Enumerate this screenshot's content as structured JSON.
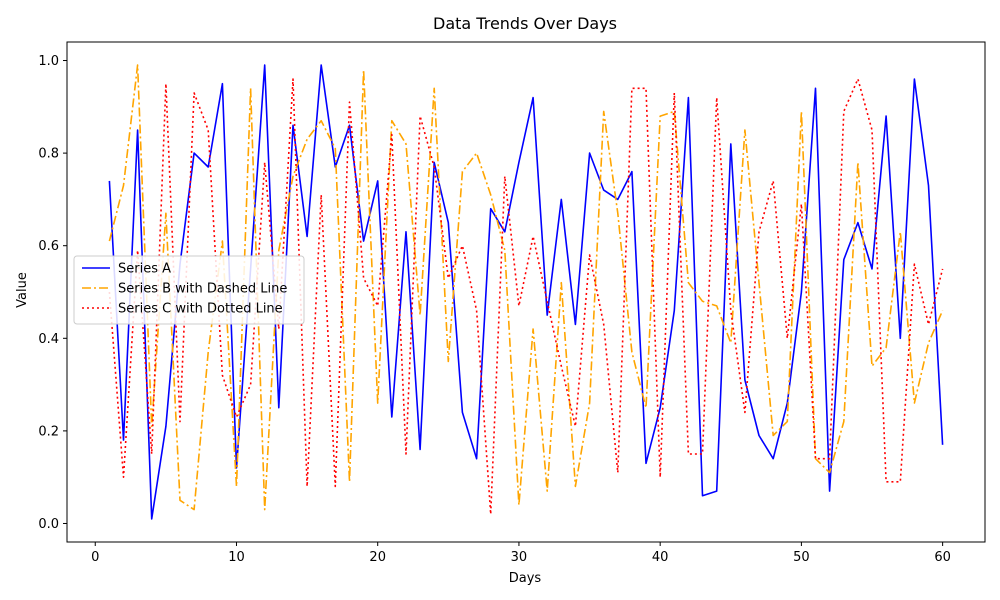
{
  "chart_data": {
    "type": "line",
    "title": "Data Trends Over Days",
    "xlabel": "Days",
    "ylabel": "Value",
    "xlim": [
      -2,
      63
    ],
    "ylim": [
      -0.04,
      1.04
    ],
    "xticks": [
      "0",
      "10",
      "20",
      "30",
      "40",
      "50",
      "60"
    ],
    "yticks": [
      "0.0",
      "0.2",
      "0.4",
      "0.6",
      "0.8",
      "1.0"
    ],
    "grid": false,
    "legend": "center-left",
    "x": [
      1,
      2,
      3,
      4,
      5,
      6,
      7,
      8,
      9,
      10,
      11,
      12,
      13,
      14,
      15,
      16,
      17,
      18,
      19,
      20,
      21,
      22,
      23,
      24,
      25,
      26,
      27,
      28,
      29,
      30,
      31,
      32,
      33,
      34,
      35,
      36,
      37,
      38,
      39,
      40,
      41,
      42,
      43,
      44,
      45,
      46,
      47,
      48,
      49,
      50,
      51,
      52,
      53,
      54,
      55,
      56,
      57,
      58,
      59,
      60
    ],
    "series": [
      {
        "name": "Series A",
        "color": "#0000ff",
        "style": "solid",
        "values": [
          0.74,
          0.18,
          0.85,
          0.01,
          0.21,
          0.56,
          0.8,
          0.77,
          0.95,
          0.12,
          0.55,
          0.99,
          0.25,
          0.86,
          0.62,
          0.99,
          0.77,
          0.86,
          0.61,
          0.74,
          0.23,
          0.63,
          0.16,
          0.78,
          0.65,
          0.24,
          0.14,
          0.68,
          0.63,
          0.78,
          0.92,
          0.45,
          0.7,
          0.43,
          0.8,
          0.72,
          0.7,
          0.76,
          0.13,
          0.25,
          0.46,
          0.92,
          0.06,
          0.07,
          0.82,
          0.31,
          0.19,
          0.14,
          0.26,
          0.5,
          0.94,
          0.07,
          0.57,
          0.65,
          0.55,
          0.88,
          0.4,
          0.96,
          0.73,
          0.17
        ]
      },
      {
        "name": "Series B with Dashed Line",
        "color": "#ffa500",
        "style": "dashdot",
        "values": [
          0.61,
          0.73,
          0.99,
          0.21,
          0.67,
          0.05,
          0.03,
          0.37,
          0.61,
          0.08,
          0.94,
          0.03,
          0.59,
          0.75,
          0.83,
          0.87,
          0.81,
          0.09,
          0.98,
          0.26,
          0.87,
          0.82,
          0.45,
          0.94,
          0.35,
          0.76,
          0.8,
          0.71,
          0.59,
          0.04,
          0.42,
          0.07,
          0.52,
          0.08,
          0.26,
          0.89,
          0.67,
          0.37,
          0.25,
          0.88,
          0.89,
          0.52,
          0.48,
          0.47,
          0.39,
          0.85,
          0.52,
          0.19,
          0.22,
          0.89,
          0.14,
          0.11,
          0.22,
          0.78,
          0.34,
          0.38,
          0.63,
          0.26,
          0.39,
          0.46
        ]
      },
      {
        "name": "Series C with Dotted Line",
        "color": "#ff0000",
        "style": "dotted",
        "values": [
          0.5,
          0.1,
          0.59,
          0.15,
          0.95,
          0.22,
          0.93,
          0.85,
          0.32,
          0.23,
          0.3,
          0.78,
          0.42,
          0.96,
          0.08,
          0.71,
          0.08,
          0.91,
          0.53,
          0.47,
          0.84,
          0.15,
          0.88,
          0.77,
          0.53,
          0.6,
          0.46,
          0.02,
          0.75,
          0.47,
          0.62,
          0.48,
          0.34,
          0.21,
          0.58,
          0.43,
          0.11,
          0.94,
          0.94,
          0.1,
          0.93,
          0.15,
          0.15,
          0.92,
          0.46,
          0.24,
          0.63,
          0.74,
          0.4,
          0.69,
          0.14,
          0.14,
          0.89,
          0.96,
          0.85,
          0.09,
          0.09,
          0.56,
          0.43,
          0.55
        ]
      }
    ]
  }
}
